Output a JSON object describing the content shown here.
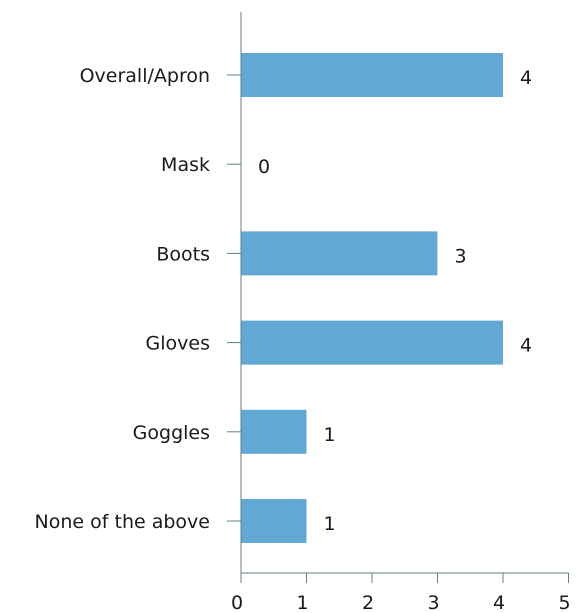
{
  "chart_data": {
    "type": "bar",
    "orientation": "horizontal",
    "categories": [
      "Overall/Apron",
      "Mask",
      "Boots",
      "Gloves",
      "Goggles",
      "None of the above"
    ],
    "values": [
      4,
      0,
      3,
      4,
      1,
      1
    ],
    "data_labels": [
      "4",
      "0",
      "3",
      "4",
      "1",
      "1"
    ],
    "title": "",
    "xlabel": "",
    "ylabel": "",
    "xlim": [
      0,
      5
    ],
    "x_ticks": [
      "0",
      "1",
      "2",
      "3",
      "4",
      "5"
    ],
    "grid": false,
    "legend": "none",
    "bar_color": "#62a8d4",
    "axis_color": "#5f7f86",
    "text_color": "#1a1a1a"
  }
}
